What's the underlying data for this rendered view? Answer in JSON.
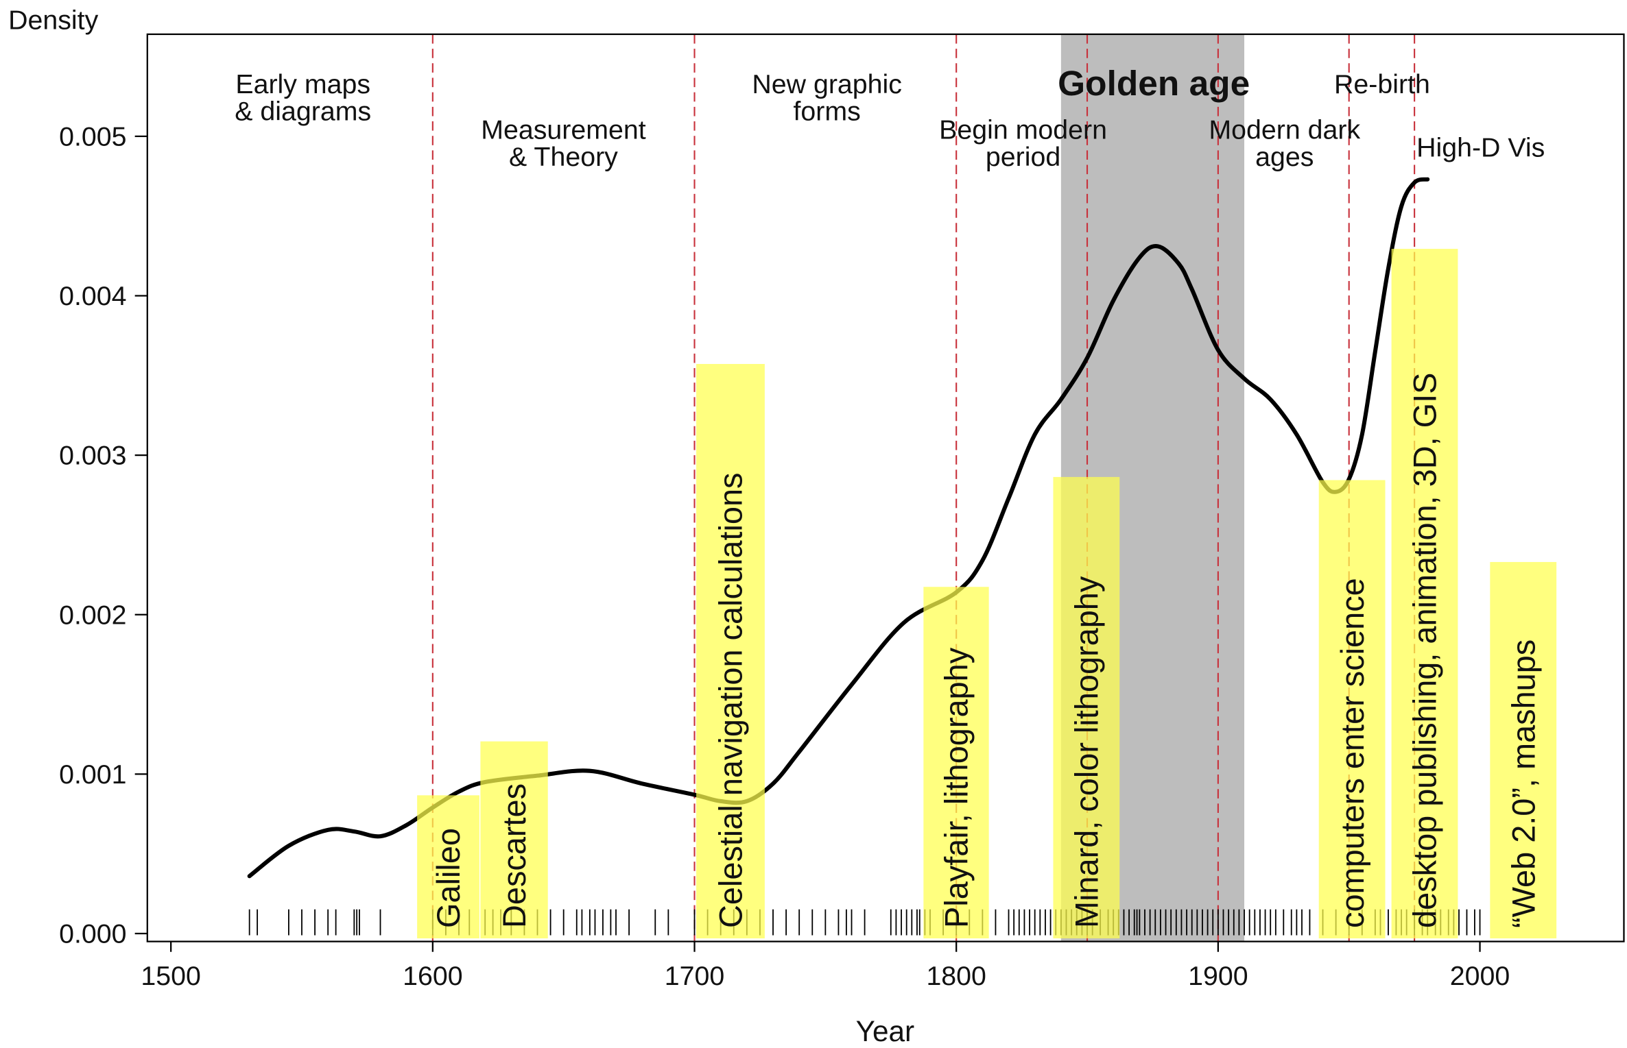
{
  "chart_data": {
    "type": "line",
    "x_label": "Year",
    "y_label": "Density",
    "xlim": [
      1491,
      2055
    ],
    "ylim": [
      -5e-05,
      0.00564
    ],
    "xticks": [
      1500,
      1600,
      1700,
      1800,
      1900,
      2000
    ],
    "yticks": [
      {
        "value": 0,
        "label": "0.000"
      },
      {
        "value": 0.001,
        "label": "0.001"
      },
      {
        "value": 0.002,
        "label": "0.002"
      },
      {
        "value": 0.003,
        "label": "0.003"
      },
      {
        "value": 0.004,
        "label": "0.004"
      },
      {
        "value": 0.005,
        "label": "0.005"
      }
    ],
    "series": [
      {
        "color": "#000000",
        "x": [
          1530,
          1545,
          1560,
          1570,
          1580,
          1590,
          1600,
          1610,
          1620,
          1640,
          1660,
          1680,
          1700,
          1710,
          1720,
          1730,
          1740,
          1760,
          1780,
          1800,
          1810,
          1820,
          1830,
          1840,
          1850,
          1860,
          1870,
          1877,
          1885,
          1890,
          1900,
          1910,
          1920,
          1930,
          1940,
          1945,
          1950,
          1955,
          1960,
          1965,
          1970,
          1975,
          1980
        ],
        "values": [
          0.00036,
          0.00055,
          0.00065,
          0.00064,
          0.00061,
          0.00068,
          0.00079,
          0.00089,
          0.00095,
          0.00099,
          0.00102,
          0.00094,
          0.00087,
          0.00083,
          0.00083,
          0.00094,
          0.00114,
          0.00156,
          0.00195,
          0.00214,
          0.00234,
          0.00273,
          0.00313,
          0.00335,
          0.00361,
          0.00397,
          0.00424,
          0.00431,
          0.0042,
          0.00404,
          0.00366,
          0.00348,
          0.00335,
          0.00313,
          0.00283,
          0.00277,
          0.00285,
          0.00313,
          0.00365,
          0.00417,
          0.00456,
          0.00471,
          0.00473
        ]
      }
    ],
    "rug": [
      1530,
      1533,
      1545,
      1550,
      1555,
      1560,
      1563,
      1570,
      1571,
      1572,
      1580,
      1600,
      1605,
      1610,
      1614,
      1620,
      1623,
      1626,
      1630,
      1635,
      1640,
      1645,
      1650,
      1655,
      1657,
      1660,
      1662,
      1665,
      1668,
      1670,
      1675,
      1685,
      1690,
      1700,
      1705,
      1710,
      1715,
      1720,
      1725,
      1730,
      1735,
      1740,
      1745,
      1750,
      1755,
      1758,
      1760,
      1765,
      1775,
      1777,
      1779,
      1781,
      1783,
      1785,
      1786,
      1788,
      1790,
      1795,
      1800,
      1805,
      1810,
      1815,
      1820,
      1822,
      1824,
      1826,
      1828,
      1830,
      1832,
      1834,
      1836,
      1838,
      1840,
      1842,
      1844,
      1846,
      1848,
      1850,
      1852,
      1855,
      1858,
      1860,
      1862,
      1864,
      1866,
      1868,
      1869,
      1870,
      1872,
      1874,
      1876,
      1878,
      1880,
      1882,
      1884,
      1886,
      1888,
      1890,
      1892,
      1894,
      1896,
      1898,
      1900,
      1902,
      1904,
      1906,
      1908,
      1910,
      1912,
      1914,
      1916,
      1918,
      1920,
      1922,
      1925,
      1928,
      1930,
      1932,
      1935,
      1940,
      1945,
      1950,
      1955,
      1960,
      1962,
      1965,
      1968,
      1970,
      1972,
      1975,
      1978,
      1980,
      1983,
      1985,
      1988,
      1990,
      1992,
      1995,
      1998,
      2000
    ],
    "period_breaks": [
      1600,
      1700,
      1800,
      1850,
      1900,
      1950,
      1975
    ],
    "highlight": [
      1840,
      1910
    ],
    "periods": [
      [
        "Early maps",
        "& diagrams"
      ],
      [
        "Measurement",
        "& Theory"
      ],
      [
        "New graphic",
        "forms"
      ],
      [
        "Begin modern",
        "period"
      ],
      [
        "Golden age"
      ],
      [
        "Modern dark",
        "ages"
      ],
      [
        "Re-birth"
      ],
      [
        "High-D Vis"
      ]
    ],
    "annotations": [
      "Galileo",
      "Descartes",
      "Celestial navigation calculations",
      "Playfair, lithography",
      "Minard, color lithography",
      "computers enter science",
      "desktop publishing, animation, 3D, GIS",
      "“Web 2.0”, mashups"
    ]
  }
}
